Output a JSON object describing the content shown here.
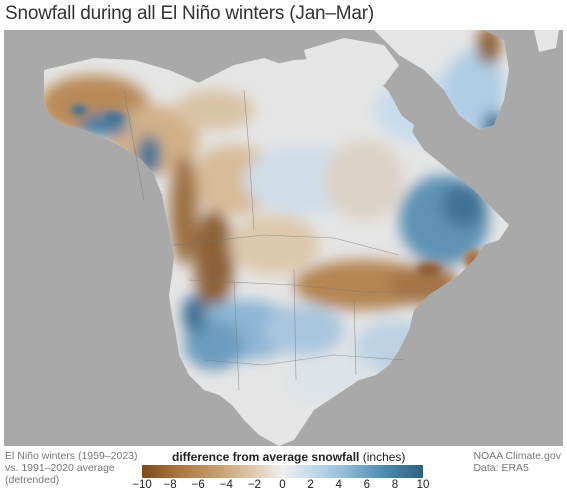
{
  "title": "Snowfall during all El Niño winters (Jan–Mar)",
  "notes": {
    "left": [
      "El Niño winters (1959–2023)",
      "vs. 1991–2020 average",
      "(detrended)"
    ],
    "right": [
      "NOAA Climate.gov",
      "Data: ERA5"
    ]
  },
  "legend": {
    "title_bold": "difference from average snowfall",
    "title_unit": " (inches)",
    "ticks": [
      "−10",
      "−8",
      "−6",
      "−4",
      "−2",
      "0",
      "2",
      "4",
      "6",
      "8",
      "10"
    ],
    "tick_values": [
      -10,
      -8,
      -6,
      -4,
      -2,
      0,
      2,
      4,
      6,
      8,
      10
    ],
    "range": [
      -10,
      10
    ]
  },
  "colors": {
    "ocean": "#a9a9a9",
    "land_neutral": "#e8e8e8",
    "deficit_dark": "#7a4a1f",
    "deficit_light": "#c9a175",
    "surplus_light": "#93bcd9",
    "surplus_dark": "#2e617f"
  }
}
